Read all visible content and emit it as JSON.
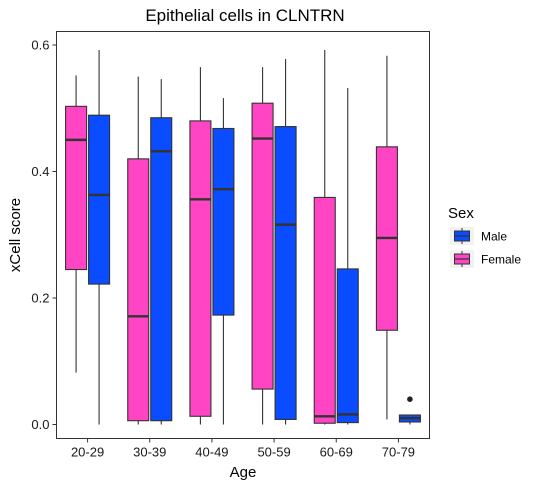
{
  "chart_data": {
    "type": "boxplot",
    "title": "Epithelial cells in CLNTRN",
    "xlabel": "Age",
    "ylabel": "xCell score",
    "categories": [
      "20-29",
      "30-39",
      "40-49",
      "50-59",
      "60-69",
      "70-79"
    ],
    "yticks": [
      "0.0",
      "0.2",
      "0.4",
      "0.6"
    ],
    "ylim": [
      -0.027,
      0.62
    ],
    "legend": {
      "title": "Sex",
      "position": "right"
    },
    "series": [
      {
        "name": "Female",
        "color": "#ff44c4",
        "boxes": [
          {
            "min": 0.082,
            "q1": 0.245,
            "median": 0.45,
            "q3": 0.503,
            "max": 0.552
          },
          {
            "min": 0.0,
            "q1": 0.006,
            "median": 0.171,
            "q3": 0.42,
            "max": 0.55
          },
          {
            "min": 0.0,
            "q1": 0.013,
            "median": 0.356,
            "q3": 0.48,
            "max": 0.565
          },
          {
            "min": 0.0,
            "q1": 0.056,
            "median": 0.452,
            "q3": 0.508,
            "max": 0.565
          },
          {
            "min": 0.0,
            "q1": 0.002,
            "median": 0.013,
            "q3": 0.359,
            "max": 0.592
          },
          {
            "min": 0.008,
            "q1": 0.149,
            "median": 0.295,
            "q3": 0.439,
            "max": 0.583
          }
        ]
      },
      {
        "name": "Male",
        "color": "#0a4cff",
        "boxes": [
          {
            "min": 0.0,
            "q1": 0.222,
            "median": 0.363,
            "q3": 0.489,
            "max": 0.592
          },
          {
            "min": 0.0,
            "q1": 0.006,
            "median": 0.432,
            "q3": 0.485,
            "max": 0.546
          },
          {
            "min": 0.0,
            "q1": 0.173,
            "median": 0.372,
            "q3": 0.468,
            "max": 0.516
          },
          {
            "min": 0.0,
            "q1": 0.008,
            "median": 0.316,
            "q3": 0.471,
            "max": 0.578
          },
          {
            "min": 0.0,
            "q1": 0.003,
            "median": 0.016,
            "q3": 0.246,
            "max": 0.532
          },
          {
            "min": 0.0,
            "q1": 0.004,
            "median": 0.01,
            "q3": 0.015,
            "max": 0.015,
            "outliers": [
              0.04
            ]
          }
        ]
      }
    ]
  }
}
